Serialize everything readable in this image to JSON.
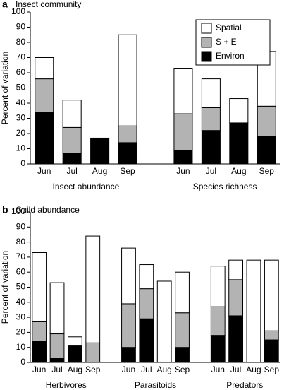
{
  "chart_data": [
    {
      "type": "bar",
      "stacked": true,
      "panel_label": "a",
      "title": "Insect community",
      "ylabel": "Percent of variation",
      "ylim": [
        0,
        100
      ],
      "yticks": [
        0,
        10,
        20,
        30,
        40,
        50,
        60,
        70,
        80,
        90,
        100
      ],
      "legend": "upper right",
      "categories": [
        "Jun",
        "Jul",
        "Aug",
        "Sep",
        "Jun",
        "Jul",
        "Aug",
        "Sep"
      ],
      "group_labels": [
        "Insect abundance",
        "Species richness"
      ],
      "series": [
        {
          "name": "Environ",
          "color": "#000000",
          "values": [
            34,
            7,
            17,
            14,
            9,
            22,
            27,
            18
          ]
        },
        {
          "name": "S + E",
          "color": "#b3b3b3",
          "values": [
            22,
            17,
            0,
            11,
            24,
            15,
            0,
            20
          ]
        },
        {
          "name": "Spatial",
          "color": "#ffffff",
          "values": [
            14,
            18,
            0,
            60,
            30,
            19,
            16,
            36
          ]
        }
      ]
    },
    {
      "type": "bar",
      "stacked": true,
      "panel_label": "b",
      "title": "Guild abundance",
      "ylabel": "Percent of variation",
      "ylim": [
        0,
        100
      ],
      "yticks": [
        0,
        10,
        20,
        30,
        40,
        50,
        60,
        70,
        80,
        90,
        100
      ],
      "categories": [
        "Jun",
        "Jul",
        "Aug",
        "Sep",
        "Jun",
        "Jul",
        "Aug",
        "Sep",
        "Jun",
        "Jul",
        "Aug",
        "Sep"
      ],
      "group_labels": [
        "Herbivores",
        "Parasitoids",
        "Predators"
      ],
      "series": [
        {
          "color": "#000000",
          "values": [
            14,
            3,
            11,
            0,
            10,
            29,
            0,
            10,
            18,
            31,
            0,
            15
          ]
        },
        {
          "color": "#b3b3b3",
          "values": [
            13,
            16,
            0,
            13,
            29,
            20,
            0,
            23,
            19,
            24,
            0,
            6
          ]
        },
        {
          "color": "#ffffff",
          "values": [
            46,
            34,
            6,
            71,
            37,
            16,
            54,
            27,
            27,
            13,
            68,
            47
          ]
        }
      ]
    }
  ]
}
